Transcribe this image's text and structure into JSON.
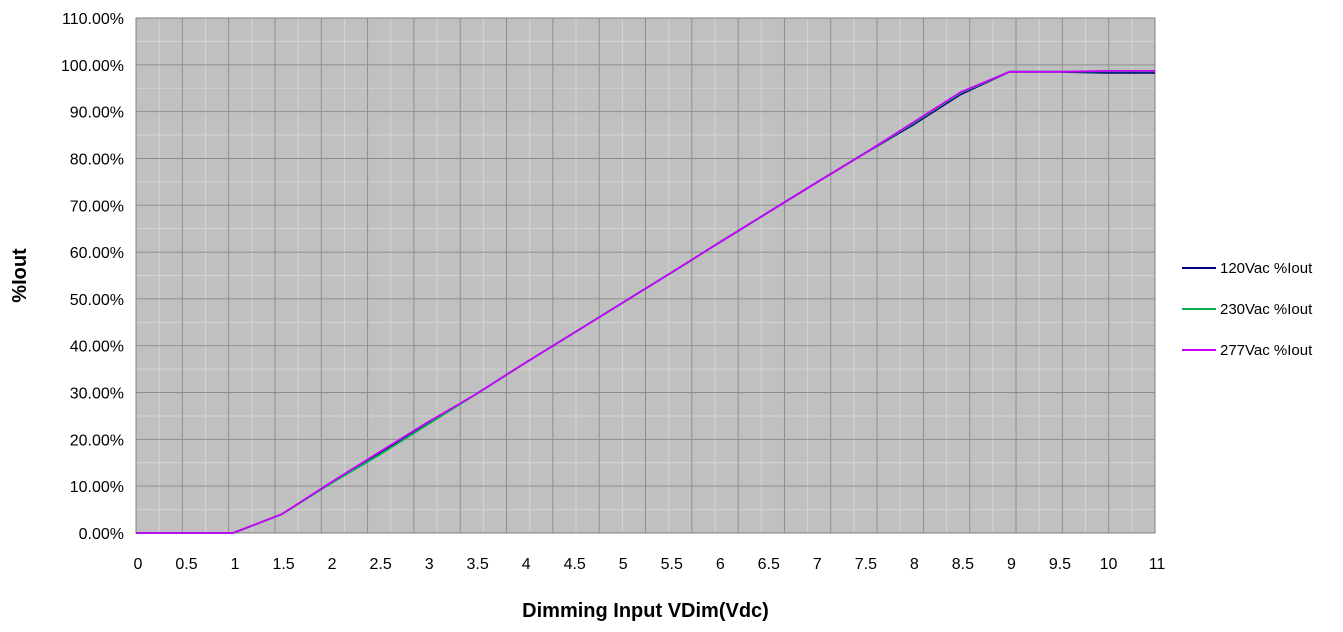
{
  "chart_data": {
    "type": "line",
    "title": "",
    "xlabel": "Dimming Input VDim(Vdc)",
    "ylabel": "%Iout",
    "xlim": [
      0,
      11
    ],
    "ylim": [
      0,
      1.1
    ],
    "x_ticks": [
      "0",
      "0.5",
      "1",
      "1.5",
      "2",
      "2.5",
      "3",
      "3.5",
      "4",
      "4.5",
      "5",
      "5.5",
      "6",
      "6.5",
      "7",
      "7.5",
      "8",
      "8.5",
      "9",
      "9.5",
      "10",
      "11"
    ],
    "y_ticks": [
      "0.00%",
      "10.00%",
      "20.00%",
      "30.00%",
      "40.00%",
      "50.00%",
      "60.00%",
      "70.00%",
      "80.00%",
      "90.00%",
      "100.00%",
      "110.00%"
    ],
    "grid": true,
    "legend_position": "right",
    "plot_background": "#C0C0C0",
    "x": [
      0,
      0.5,
      1,
      1.5,
      2,
      2.5,
      3,
      3.5,
      4,
      4.5,
      5,
      5.5,
      6,
      6.5,
      7,
      7.5,
      8,
      8.5,
      9,
      9.5,
      10,
      11
    ],
    "series": [
      {
        "name": "120Vac %Iout",
        "color": "#000080",
        "values": [
          0,
          0,
          0,
          0.04,
          0.105,
          0.168,
          0.233,
          0.296,
          0.362,
          0.426,
          0.49,
          0.554,
          0.619,
          0.683,
          0.747,
          0.81,
          0.871,
          0.937,
          0.985,
          0.985,
          0.983,
          0.983
        ]
      },
      {
        "name": "230Vac %Iout",
        "color": "#00B050",
        "values": [
          0,
          0,
          0,
          0.04,
          0.105,
          0.166,
          0.231,
          0.296,
          0.362,
          0.426,
          0.49,
          0.554,
          0.619,
          0.683,
          0.747,
          0.81,
          0.874,
          0.94,
          0.985,
          0.985,
          0.986,
          0.986
        ]
      },
      {
        "name": "277Vac %Iout",
        "color": "#CC00FF",
        "values": [
          0,
          0,
          0,
          0.04,
          0.107,
          0.172,
          0.236,
          0.296,
          0.362,
          0.426,
          0.49,
          0.554,
          0.619,
          0.683,
          0.747,
          0.81,
          0.876,
          0.942,
          0.985,
          0.985,
          0.987,
          0.987
        ]
      }
    ]
  }
}
